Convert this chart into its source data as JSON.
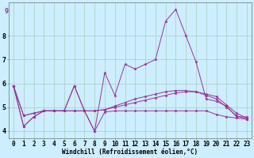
{
  "xlabel": "Windchill (Refroidissement éolien,°C)",
  "ylabel": "",
  "bg_color": "#cceeff",
  "grid_color": "#aaccbb",
  "line_color": "#993399",
  "xlim": [
    -0.5,
    23.5
  ],
  "ylim": [
    3.7,
    9.4
  ],
  "yticks": [
    4,
    5,
    6,
    7,
    8
  ],
  "xticks": [
    0,
    1,
    2,
    3,
    4,
    5,
    6,
    7,
    8,
    9,
    10,
    11,
    12,
    13,
    14,
    15,
    16,
    17,
    18,
    19,
    20,
    21,
    22,
    23
  ],
  "series": [
    [
      5.9,
      4.2,
      4.6,
      4.85,
      4.85,
      4.85,
      5.9,
      4.85,
      4.0,
      6.45,
      5.5,
      6.8,
      6.6,
      6.8,
      7.0,
      8.6,
      9.1,
      8.0,
      6.9,
      5.35,
      5.25,
      5.05,
      4.6,
      4.6
    ],
    [
      5.9,
      4.2,
      4.6,
      4.85,
      4.85,
      4.85,
      5.9,
      4.85,
      4.0,
      4.8,
      4.85,
      4.85,
      4.85,
      4.85,
      4.85,
      4.85,
      4.85,
      4.85,
      4.85,
      4.85,
      4.7,
      4.6,
      4.55,
      4.5
    ],
    [
      5.9,
      4.65,
      4.75,
      4.85,
      4.85,
      4.85,
      4.85,
      4.85,
      4.85,
      4.9,
      5.0,
      5.1,
      5.2,
      5.3,
      5.4,
      5.5,
      5.6,
      5.65,
      5.65,
      5.55,
      5.45,
      5.1,
      4.75,
      4.55
    ],
    [
      5.9,
      4.65,
      4.75,
      4.85,
      4.85,
      4.85,
      4.85,
      4.85,
      4.85,
      4.9,
      5.05,
      5.2,
      5.35,
      5.45,
      5.55,
      5.65,
      5.7,
      5.7,
      5.65,
      5.5,
      5.35,
      5.0,
      4.65,
      4.5
    ]
  ],
  "xlabel_fontsize": 5.5,
  "tick_fontsize": 5.5,
  "ytick_fontsize": 6.0
}
